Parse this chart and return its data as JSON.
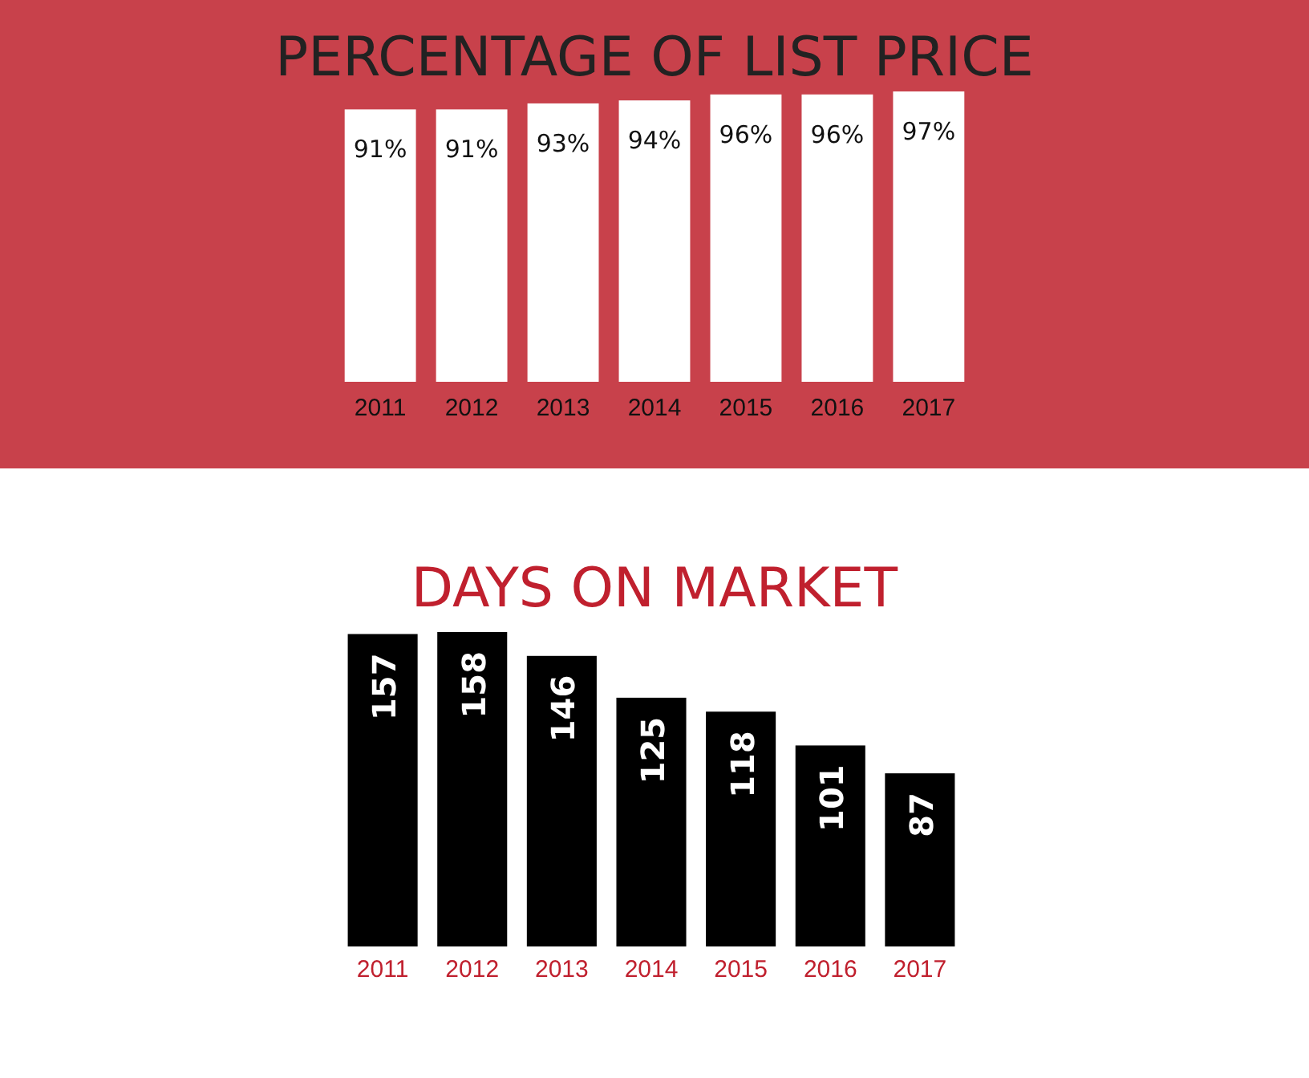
{
  "chart_data": [
    {
      "type": "bar",
      "title": "PERCENTAGE OF LIST PRICE",
      "categories": [
        "2011",
        "2012",
        "2013",
        "2014",
        "2015",
        "2016",
        "2017"
      ],
      "values": [
        91,
        91,
        93,
        94,
        96,
        96,
        97
      ],
      "value_labels": [
        "91%",
        "91%",
        "93%",
        "94%",
        "96%",
        "96%",
        "97%"
      ],
      "color": "#ffffff"
    },
    {
      "type": "bar",
      "title": "DAYS ON MARKET",
      "categories": [
        "2011",
        "2012",
        "2013",
        "2014",
        "2015",
        "2016",
        "2017"
      ],
      "values": [
        157,
        158,
        146,
        125,
        118,
        101,
        87
      ],
      "data_labels": true,
      "color": "#000000"
    }
  ]
}
